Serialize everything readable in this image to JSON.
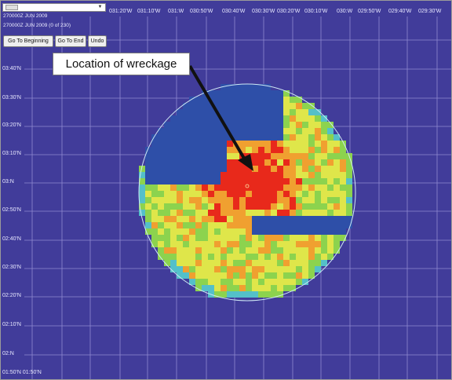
{
  "toolbar": {
    "time_label_1": "270000Z JUN 2009",
    "time_label_2": "270000Z JUN 2009 (0 of 230)",
    "go_to_beginning": "Go To Beginning",
    "go_to_end": "Go To End",
    "undo": "Undo",
    "slider_arrow": "▼"
  },
  "map": {
    "longitude_labels": [
      "031:20'W",
      "031:10'W",
      "031:W",
      "030:50'W",
      "030:40'W",
      "030:30'W",
      "030:20'W",
      "030:10'W",
      "030:W",
      "029:50'W",
      "029:40'W",
      "029:30'W"
    ],
    "latitude_labels": [
      "03:40'N",
      "03:30'N",
      "03:20'N",
      "03:10'N",
      "03:N",
      "02:50'N",
      "02:40'N",
      "02:30'N",
      "02:20'N",
      "02:10'N",
      "02:N"
    ],
    "bottom_corner_label": "01:50'N 01:50'N",
    "callout": "Location of wreckage",
    "colors": {
      "background": "#413c9a",
      "grid": "#8f8ad0",
      "blue": "#2e4fa8",
      "high": "#e8291b",
      "medium": "#f0a030",
      "low": "#dfe64a",
      "lowest": "#8cd34e",
      "edge": "#54c0c9"
    }
  }
}
